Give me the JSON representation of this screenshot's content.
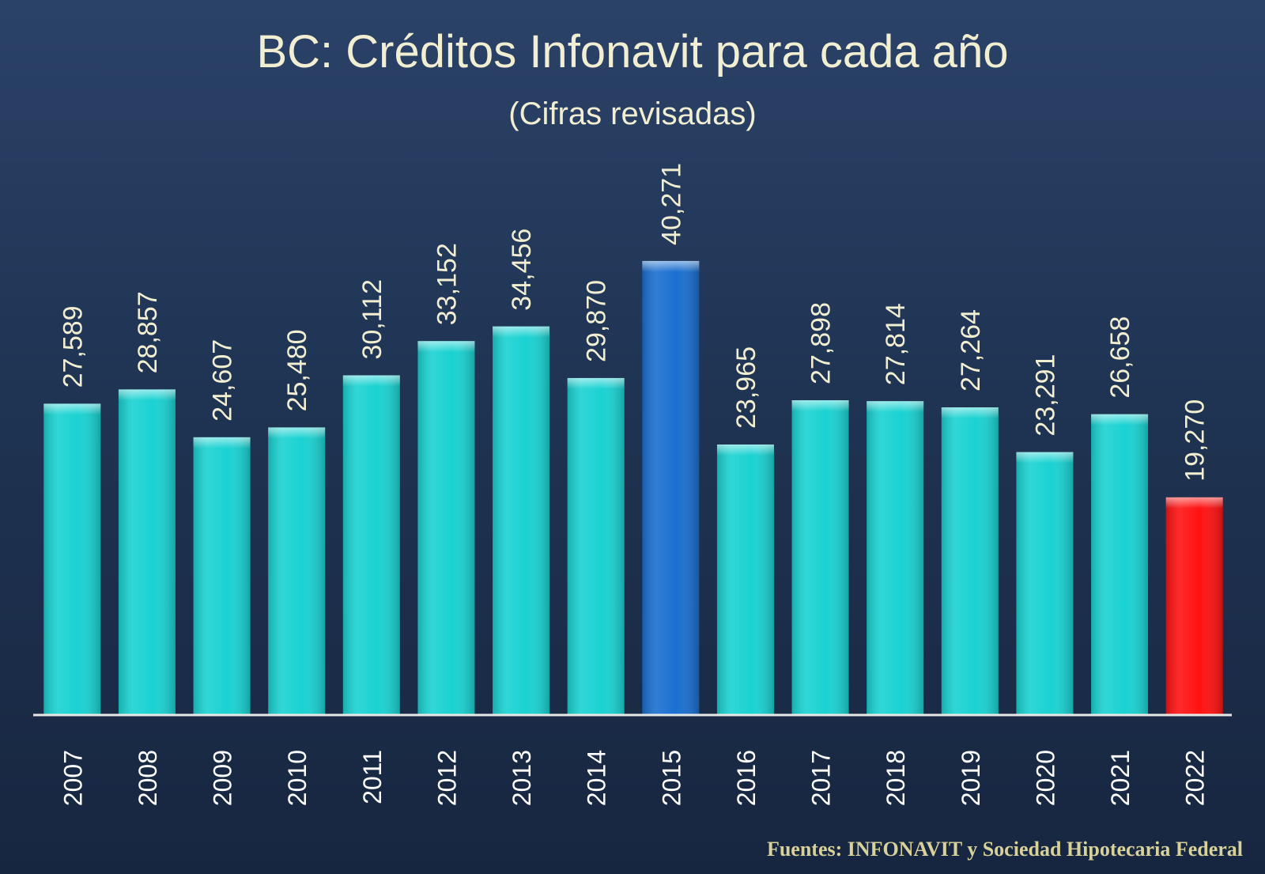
{
  "chart_data": {
    "type": "bar",
    "title": "BC: Créditos Infonavit para cada año",
    "subtitle": "(Cifras revisadas)",
    "xlabel": "",
    "ylabel": "",
    "ylim": [
      0,
      42000
    ],
    "grid": false,
    "legend": "none",
    "categories": [
      "2007",
      "2008",
      "2009",
      "2010",
      "2011",
      "2012",
      "2013",
      "2014",
      "2015",
      "2016",
      "2017",
      "2018",
      "2019",
      "2020",
      "2021",
      "2022"
    ],
    "values": [
      27589,
      28857,
      24607,
      25480,
      30112,
      33152,
      34456,
      29870,
      40271,
      23965,
      27898,
      27814,
      27264,
      23291,
      26658,
      19270
    ],
    "value_labels": [
      "27,589",
      "28,857",
      "24,607",
      "25,480",
      "30,112",
      "33,152",
      "34,456",
      "29,870",
      "40,271",
      "23,965",
      "27,898",
      "27,814",
      "27,264",
      "23,291",
      "26,658",
      "19,270"
    ],
    "bar_colors": [
      "#1ad2d2",
      "#1ad2d2",
      "#1ad2d2",
      "#1ad2d2",
      "#1ad2d2",
      "#1ad2d2",
      "#1ad2d2",
      "#1ad2d2",
      "#1a6fd0",
      "#1ad2d2",
      "#1ad2d2",
      "#1ad2d2",
      "#1ad2d2",
      "#1ad2d2",
      "#1ad2d2",
      "#ff1212"
    ]
  },
  "source": "Fuentes: INFONAVIT y Sociedad Hipotecaria Federal",
  "colors": {
    "text": "#f2eed2",
    "source_text": "#d8d19a",
    "axis": "#e8e8e8"
  }
}
